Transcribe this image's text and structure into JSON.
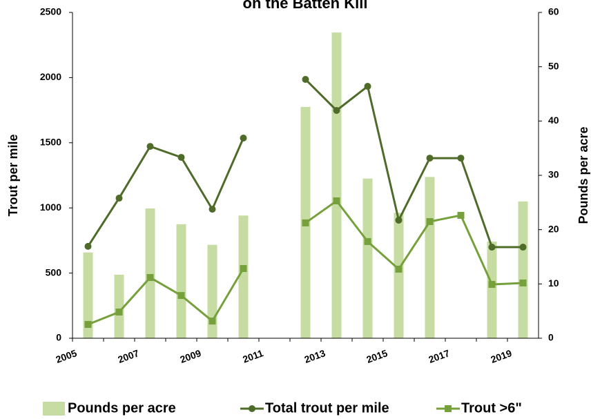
{
  "chart_data": {
    "type": "bar-line",
    "title": "on the Batten Kill",
    "categories": [
      "2005",
      null,
      "2007",
      null,
      "2009",
      null,
      "2011",
      null,
      "2013",
      null,
      "2015",
      null,
      "2017",
      null,
      "2019"
    ],
    "ylabel": "Trout per mile",
    "y2label": "Pounds per acre",
    "ylim": [
      0,
      2500
    ],
    "yticks": [
      0,
      500,
      1000,
      1500,
      2000,
      2500
    ],
    "y2lim": [
      0,
      60
    ],
    "y2ticks": [
      0,
      10,
      20,
      30,
      40,
      50,
      60
    ],
    "legend": "bottom",
    "series": [
      {
        "name": "Pounds per acre",
        "type": "bar",
        "axis": "y2",
        "color": "#c6dca2",
        "values": [
          15.8,
          11.7,
          23.9,
          21.0,
          17.2,
          22.6,
          null,
          42.6,
          56.3,
          29.4,
          23.1,
          29.7,
          null,
          17.8,
          25.2
        ]
      },
      {
        "name": "Total trout per mile",
        "type": "line",
        "marker": "circle",
        "color": "#4e6b2a",
        "values": [
          705,
          1075,
          1472,
          1388,
          990,
          1536,
          null,
          1986,
          1748,
          1933,
          906,
          1382,
          1382,
          699,
          699
        ]
      },
      {
        "name": "Trout >6\"",
        "type": "line",
        "marker": "square",
        "color": "#76a03c",
        "values": [
          106,
          201,
          466,
          328,
          132,
          535,
          null,
          885,
          1054,
          742,
          530,
          895,
          943,
          413,
          424
        ]
      }
    ]
  }
}
